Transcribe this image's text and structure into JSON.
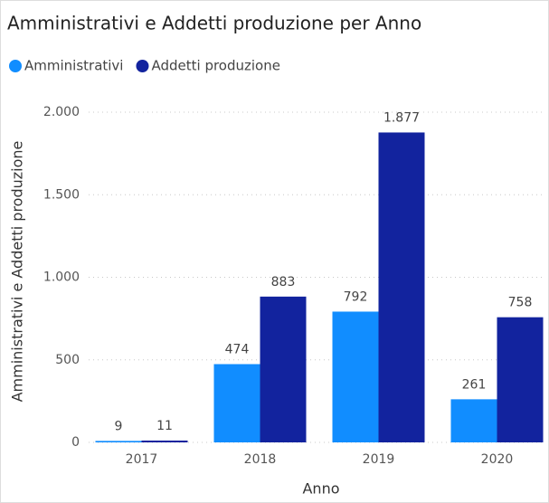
{
  "chart_data": {
    "type": "bar",
    "title": "Amministrativi e Addetti produzione per Anno",
    "x_label": "Anno",
    "y_label": "Amministrativi e Addetti produzione",
    "categories": [
      "2017",
      "2018",
      "2019",
      "2020"
    ],
    "series": [
      {
        "name": "Amministrativi",
        "color": "#118dff",
        "values": [
          9,
          474,
          792,
          261
        ]
      },
      {
        "name": "Addetti produzione",
        "color": "#12239e",
        "values": [
          11,
          883,
          1877,
          758
        ],
        "value_labels": [
          "11",
          "883",
          "1.877",
          "758"
        ]
      }
    ],
    "ylim": [
      0,
      2000
    ],
    "yticks": [
      0,
      500,
      {
        "value": 1000,
        "label": "1.000"
      },
      {
        "value": 1500,
        "label": "1.500"
      },
      {
        "value": 2000,
        "label": "2.000"
      }
    ],
    "grid": true,
    "legend": "top-left"
  }
}
